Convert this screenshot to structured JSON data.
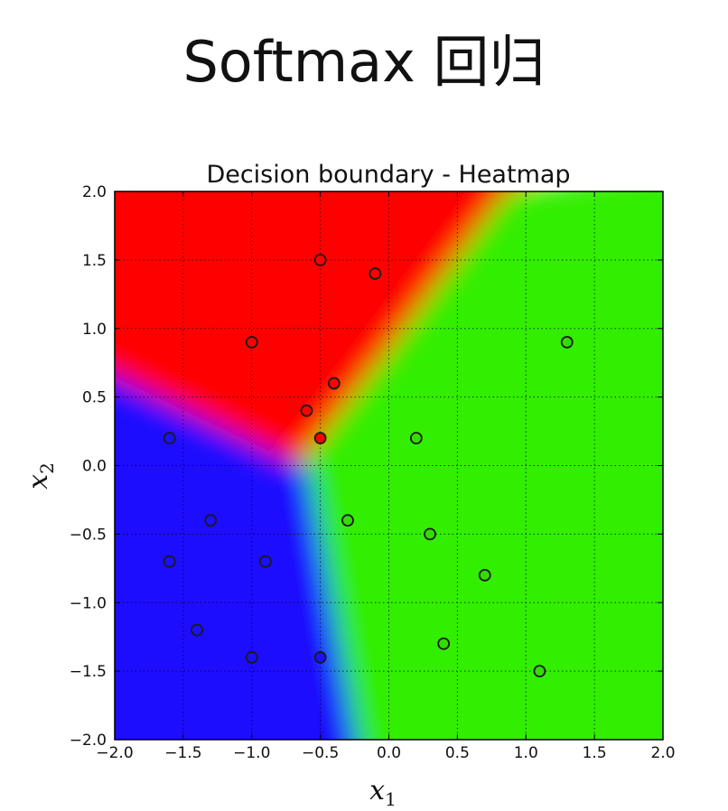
{
  "slide": {
    "title": "Softmax 回归"
  },
  "chart_data": {
    "type": "scatter",
    "title": "Decision boundary - Heatmap",
    "xlabel": "x",
    "xlabel_sub": "1",
    "ylabel": "x",
    "ylabel_sub": "2",
    "xlim": [
      -2.0,
      2.0
    ],
    "ylim": [
      -2.0,
      2.0
    ],
    "xticks": [
      -2.0,
      -1.5,
      -1.0,
      -0.5,
      0.0,
      0.5,
      1.0,
      1.5,
      2.0
    ],
    "yticks": [
      -2.0,
      -1.5,
      -1.0,
      -0.5,
      0.0,
      0.5,
      1.0,
      1.5,
      2.0
    ],
    "xtick_labels": [
      "−2.0",
      "−1.5",
      "−1.0",
      "−0.5",
      "0.0",
      "0.5",
      "1.0",
      "1.5",
      "2.0"
    ],
    "ytick_labels": [
      "−2.0",
      "−1.5",
      "−1.0",
      "−0.5",
      "0.0",
      "0.5",
      "1.0",
      "1.5",
      "2.0"
    ],
    "grid": true,
    "background": "heatmap of three class regions",
    "colors": {
      "red": "#ff0000",
      "green": "#33ee00",
      "blue": "#1a10ff"
    },
    "series": [
      {
        "class": "red",
        "color": "#ff0000",
        "points": [
          [
            -0.5,
            1.5
          ],
          [
            -0.1,
            1.4
          ],
          [
            -1.0,
            0.9
          ],
          [
            -0.4,
            0.6
          ],
          [
            -0.6,
            0.4
          ],
          [
            -0.5,
            0.2
          ]
        ]
      },
      {
        "class": "green",
        "color": "#33dd00",
        "points": [
          [
            1.3,
            0.9
          ],
          [
            0.2,
            0.2
          ],
          [
            -0.3,
            -0.4
          ],
          [
            0.3,
            -0.5
          ],
          [
            0.7,
            -0.8
          ],
          [
            0.4,
            -1.3
          ],
          [
            1.1,
            -1.5
          ]
        ]
      },
      {
        "class": "blue",
        "color": "#1a10ff",
        "points": [
          [
            -1.6,
            0.2
          ],
          [
            -1.3,
            -0.4
          ],
          [
            -1.6,
            -0.7
          ],
          [
            -0.9,
            -0.7
          ],
          [
            -1.4,
            -1.2
          ],
          [
            -1.0,
            -1.4
          ],
          [
            -0.5,
            -1.4
          ]
        ]
      }
    ]
  }
}
